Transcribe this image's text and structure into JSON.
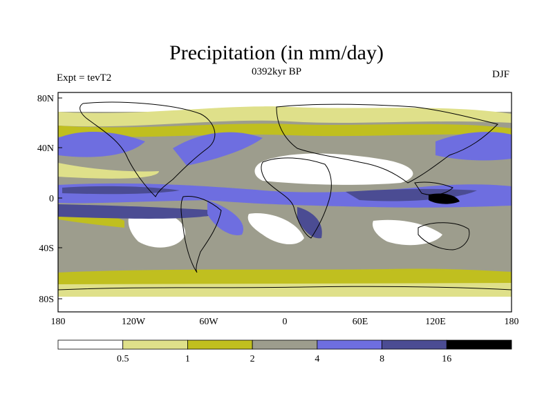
{
  "title": "Precipitation (in mm/day)",
  "subtitle": "0392kyr BP",
  "left_label": "Expt = tevT2",
  "right_label": "DJF",
  "lat_ticks": [
    "80N",
    "40N",
    "0",
    "40S",
    "80S"
  ],
  "lon_ticks": [
    "180",
    "120W",
    "60W",
    "0",
    "60E",
    "120E",
    "180"
  ],
  "colorbar": {
    "colors": [
      "#ffffff",
      "#dfe08a",
      "#c0bf1f",
      "#9d9d8d",
      "#6e6ee0",
      "#4b4c93",
      "#000000"
    ],
    "labels": [
      "0.5",
      "1",
      "2",
      "4",
      "8",
      "16"
    ]
  }
}
